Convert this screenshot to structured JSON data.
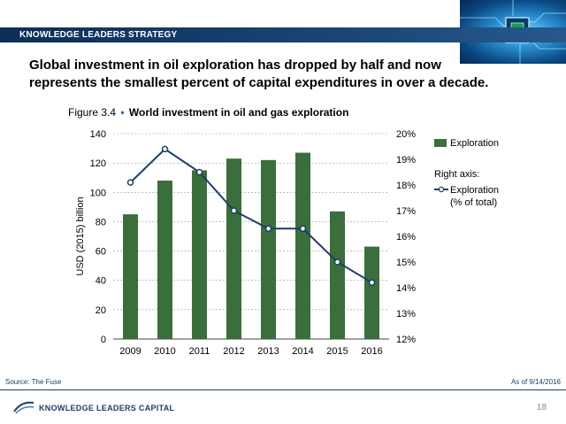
{
  "header": {
    "title": "KNOWLEDGE LEADERS STRATEGY"
  },
  "headline": "Global investment in oil exploration has dropped by half and now represents the smallest percent of capital expenditures in over a decade.",
  "figure": {
    "number": "Figure 3.4",
    "title": "World investment in oil and gas exploration"
  },
  "chart_data": {
    "type": "bar",
    "categories": [
      "2009",
      "2010",
      "2011",
      "2012",
      "2013",
      "2014",
      "2015",
      "2016"
    ],
    "series": [
      {
        "name": "Exploration",
        "type": "bar",
        "axis": "left",
        "values": [
          85,
          108,
          115,
          123,
          122,
          127,
          87,
          63
        ]
      },
      {
        "name": "Exploration (% of total)",
        "type": "line",
        "axis": "right",
        "values": [
          18.1,
          19.4,
          18.5,
          17.0,
          16.3,
          16.3,
          15.0,
          14.2
        ]
      }
    ],
    "ylabel": "USD (2015) billion",
    "ylim": [
      0,
      140
    ],
    "yticks": [
      "0",
      "20",
      "40",
      "60",
      "80",
      "100",
      "120",
      "140"
    ],
    "y2lim": [
      12,
      20
    ],
    "y2ticks": [
      "12%",
      "13%",
      "14%",
      "15%",
      "16%",
      "17%",
      "18%",
      "19%",
      "20%"
    ],
    "grid": true,
    "legend": {
      "placement": "right",
      "bar_label": "Exploration",
      "right_axis_heading": "Right axis:",
      "line_label_1": "Exploration",
      "line_label_2": "(% of total)"
    },
    "colors": {
      "bar": "#3a6e3a",
      "line": "#1f3d66",
      "marker_fill": "#ffffff"
    }
  },
  "footer": {
    "source": "Source: The Fuse",
    "as_of": "As of 9/14/2016",
    "logo_text": "KNOWLEDGE LEADERS CAPITAL",
    "page_number": "18"
  }
}
